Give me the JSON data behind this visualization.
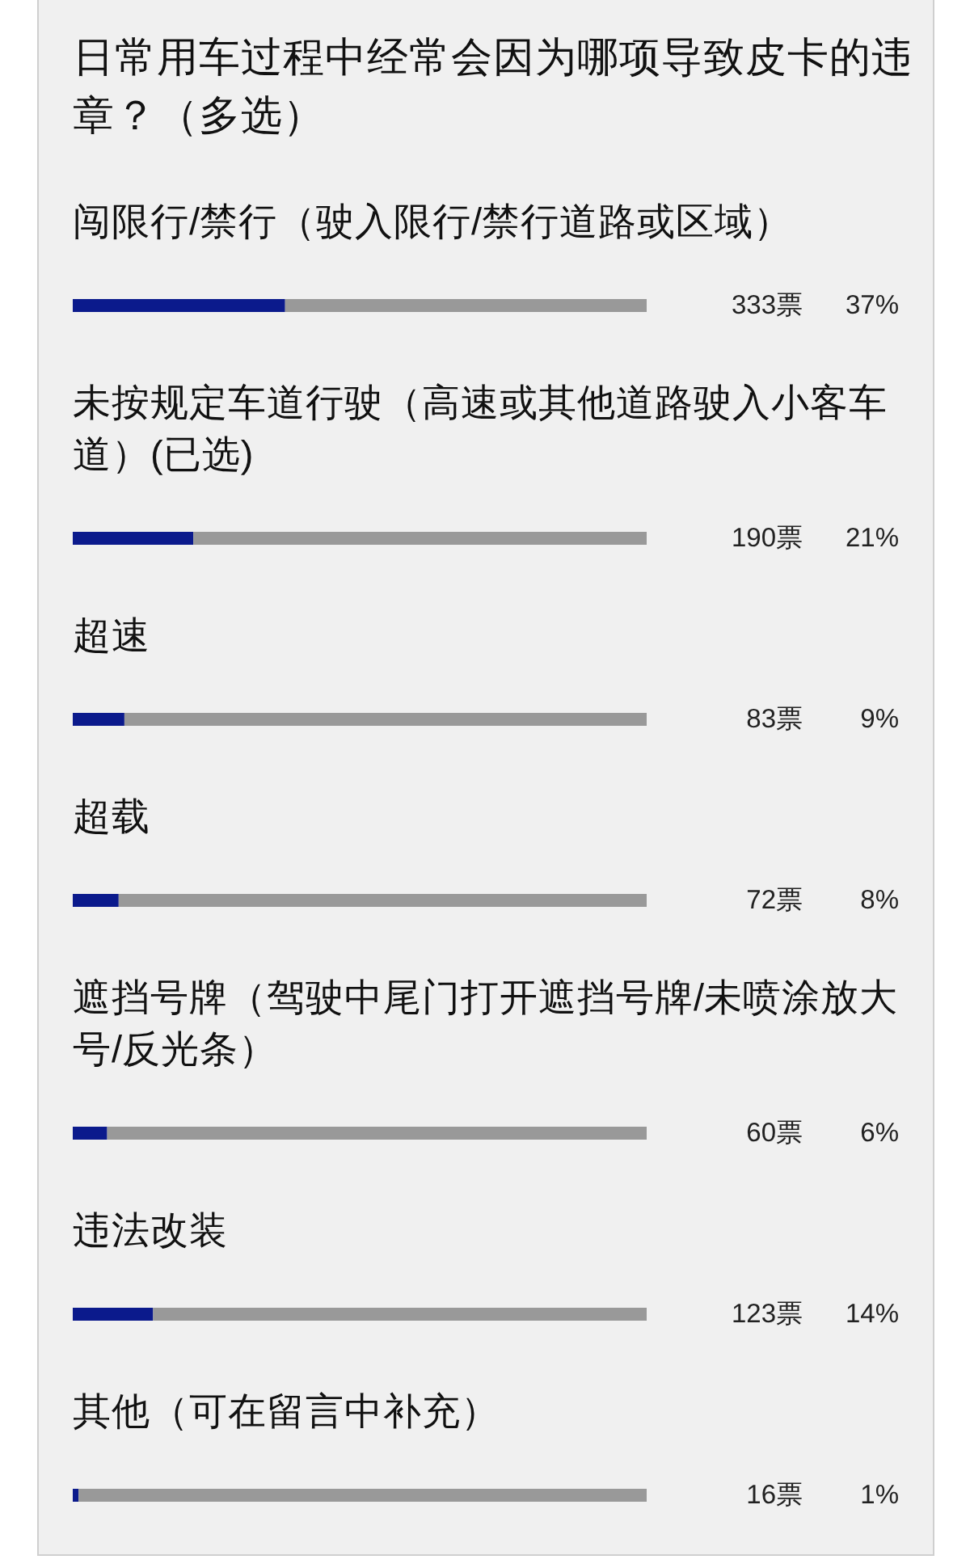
{
  "chart_data": {
    "type": "bar",
    "orientation": "horizontal",
    "stacked": true,
    "title": "日常用车过程中经常会因为哪项导致皮卡的违章？（多选）",
    "categories": [
      "闯限行/禁行（驶入限行/禁行道路或区域）",
      "未按规定车道行驶（高速或其他道路驶入小客车道）(已选)",
      "超速",
      "超载",
      "遮挡号牌（驾驶中尾门打开遮挡号牌/未喷涂放大号/反光条）",
      "违法改装",
      "其他（可在留言中补充）"
    ],
    "series": [
      {
        "color": "#0b1a8c",
        "values": [
          37,
          21,
          9,
          8,
          6,
          14,
          1
        ],
        "value_labels": [
          "37%",
          "21%",
          "9%",
          "8%",
          "6%",
          "14%",
          "1%"
        ]
      },
      {
        "color": "#999999",
        "values": [
          63,
          79,
          91,
          92,
          94,
          86,
          99
        ]
      }
    ],
    "xlim": [
      0,
      100
    ],
    "annotations": [
      "333票",
      "190票",
      "83票",
      "72票",
      "60票",
      "123票",
      "16票"
    ]
  }
}
